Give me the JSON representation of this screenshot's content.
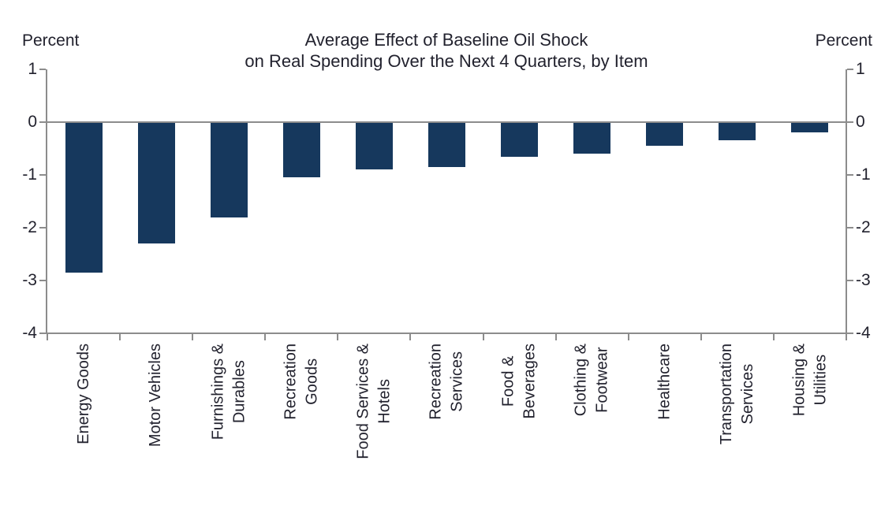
{
  "chart_data": {
    "type": "bar",
    "title": "Average Effect of Baseline Oil Shock on Real Spending Over the Next 4 Quarters, by Item",
    "title_lines": [
      "Average Effect of Baseline Oil Shock",
      "on Real Spending Over the Next 4 Quarters, by Item"
    ],
    "ylabel_left": "Percent",
    "ylabel_right": "Percent",
    "categories": [
      "Energy Goods",
      "Motor Vehicles",
      "Furnishings & Durables",
      "Recreation Goods",
      "Food Services & Hotels",
      "Recreation Services",
      "Food & Beverages",
      "Clothing & Footwear",
      "Healthcare",
      "Transportation Services",
      "Housing & Utilities"
    ],
    "category_label_lines": [
      [
        "Energy Goods"
      ],
      [
        "Motor Vehicles"
      ],
      [
        "Furnishings &",
        "Durables"
      ],
      [
        "Recreation",
        "Goods"
      ],
      [
        "Food Services &",
        "Hotels"
      ],
      [
        "Recreation",
        "Services"
      ],
      [
        "Food &",
        "Beverages"
      ],
      [
        "Clothing &",
        "Footwear"
      ],
      [
        "Healthcare"
      ],
      [
        "Transportation",
        "Services"
      ],
      [
        "Housing &",
        "Utilities"
      ]
    ],
    "values": [
      -2.85,
      -2.3,
      -1.8,
      -1.05,
      -0.9,
      -0.85,
      -0.65,
      -0.6,
      -0.45,
      -0.35,
      -0.2
    ],
    "units": "percent",
    "ylim": [
      -4,
      1
    ],
    "yticks": [
      1,
      0,
      -1,
      -2,
      -3,
      -4
    ],
    "ytick_labels": [
      "1",
      "0",
      "-1",
      "-2",
      "-3",
      "-4"
    ],
    "grid": false,
    "zero_line": true,
    "legend": null,
    "colors": {
      "bar": "#16385D",
      "axis": "#8C8C8C",
      "text": "#22222E",
      "background": "#FFFFFF"
    }
  }
}
